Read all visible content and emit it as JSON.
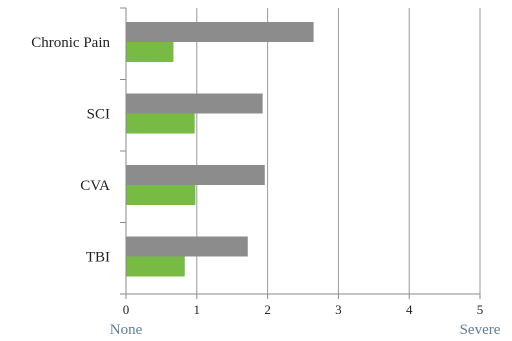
{
  "chart_data": {
    "type": "bar",
    "orientation": "horizontal",
    "categories": [
      "Chronic Pain",
      "SCI",
      "CVA",
      "TBI"
    ],
    "series": [
      {
        "values": [
          2.65,
          1.93,
          1.96,
          1.72
        ],
        "color": "#8c8c8c"
      },
      {
        "values": [
          0.67,
          0.97,
          0.98,
          0.83
        ],
        "color": "#77bb44"
      }
    ],
    "x_ticks": [
      "0",
      "1",
      "2",
      "3",
      "4",
      "5"
    ],
    "xlim": [
      0,
      5
    ],
    "x_end_labels": {
      "min": "None",
      "max": "Severe"
    },
    "grid": "vertical",
    "legend": "none"
  }
}
